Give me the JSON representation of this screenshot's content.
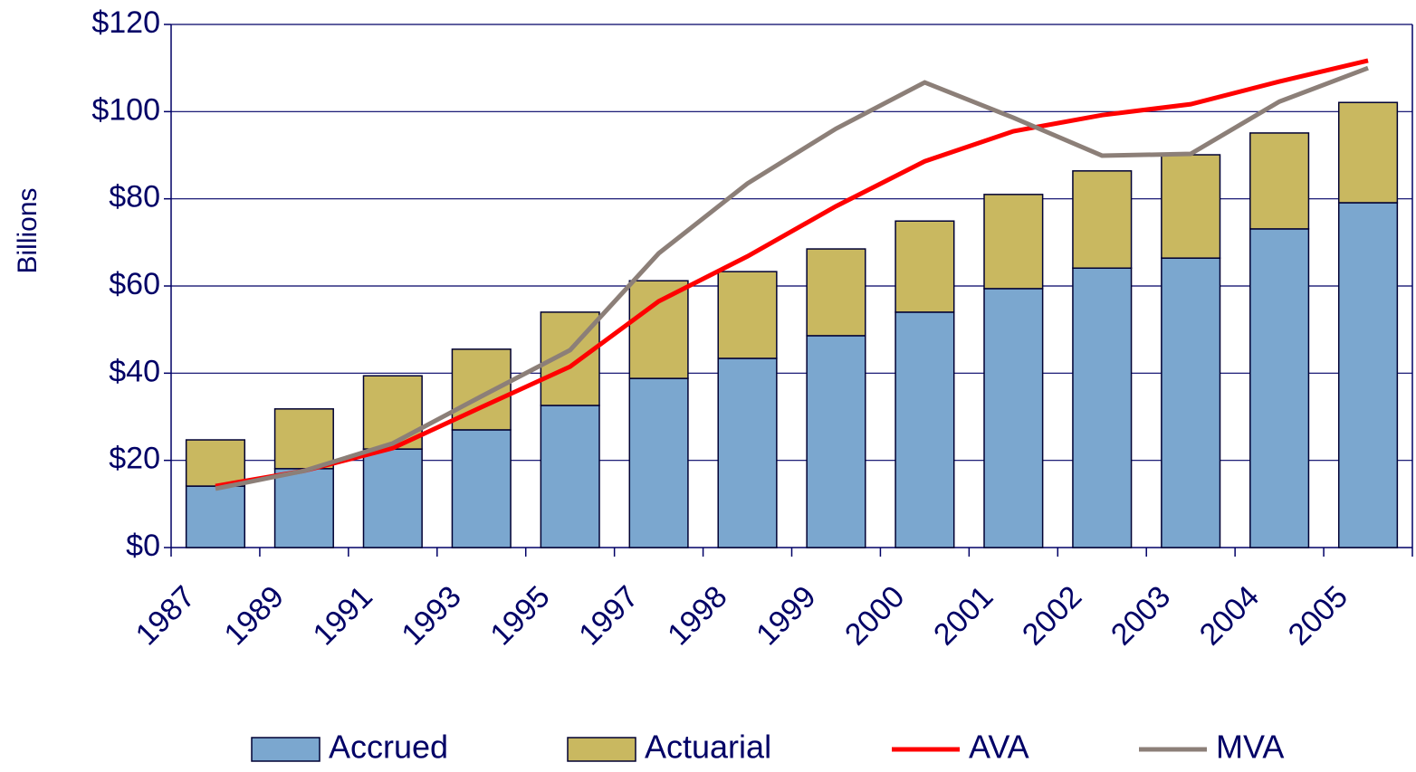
{
  "chart_data": {
    "type": "bar",
    "stacked": true,
    "y_label": "Billions",
    "categories": [
      "1987",
      "1989",
      "1991",
      "1993",
      "1995",
      "1997",
      "1998",
      "1999",
      "2000",
      "2001",
      "2002",
      "2003",
      "2004",
      "2005"
    ],
    "series": [
      {
        "name": "Accrued",
        "color": "#7ba7cf",
        "values": [
          14.1,
          18.1,
          22.6,
          27,
          32.6,
          38.8,
          43.4,
          48.6,
          54,
          59.4,
          64.1,
          66.4,
          73.1,
          79.1
        ]
      },
      {
        "name": "Actuarial",
        "color": "#c9b860",
        "values": [
          10.6,
          13.7,
          16.8,
          18.5,
          21.4,
          22.4,
          19.9,
          19.9,
          20.9,
          21.6,
          22.3,
          23.7,
          22,
          23
        ]
      },
      {
        "name": "AVA",
        "type": "line",
        "color": "#ff0000",
        "values": [
          14.1,
          17.6,
          22.8,
          32.2,
          41.5,
          56.5,
          66.8,
          78.3,
          88.6,
          95.5,
          99.2,
          101.7,
          106.9,
          111.7
        ]
      },
      {
        "name": "MVA",
        "type": "line",
        "color": "#8c7f78",
        "values": [
          13.5,
          17.6,
          23.9,
          34.7,
          45.3,
          67.5,
          83.5,
          96.1,
          106.7,
          98.6,
          89.9,
          90.3,
          102.3,
          110
        ]
      }
    ],
    "ylim": [
      0,
      120
    ],
    "yticks": [
      {
        "value": 0,
        "label": "$0"
      },
      {
        "value": 20,
        "label": "$20"
      },
      {
        "value": 40,
        "label": "$40"
      },
      {
        "value": 60,
        "label": "$60"
      },
      {
        "value": 80,
        "label": "$80"
      },
      {
        "value": 100,
        "label": "$100"
      },
      {
        "value": 120,
        "label": "$120"
      }
    ],
    "grid": true
  }
}
